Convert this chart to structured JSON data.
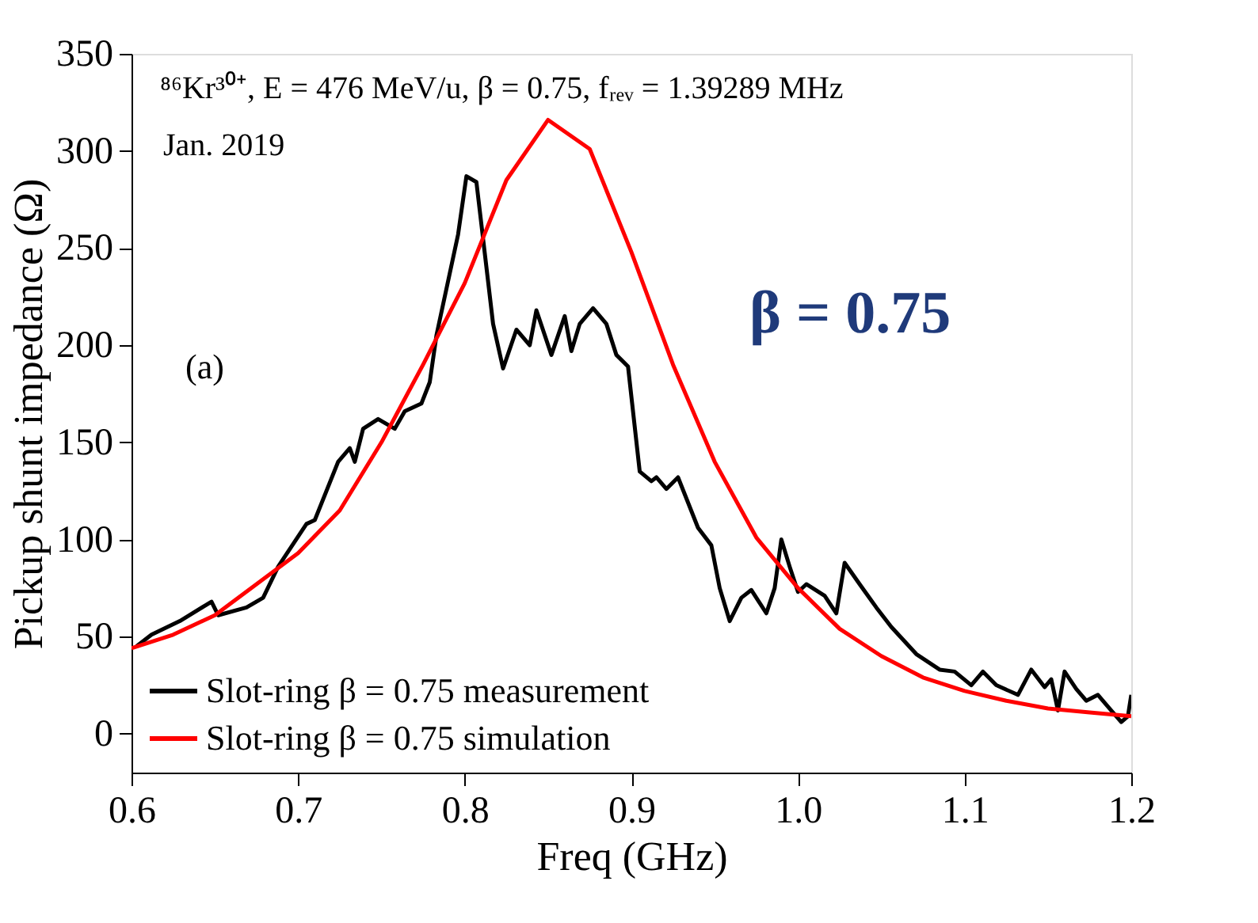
{
  "chart_data": {
    "type": "line",
    "xlabel": "Freq (GHz)",
    "ylabel": "Pickup shunt impedance (Ω)",
    "xlim": [
      0.6,
      1.2
    ],
    "ylim": [
      -20,
      350
    ],
    "xticks": [
      0.6,
      0.7,
      0.8,
      0.9,
      {
        "value": 1,
        "label": "1.0"
      },
      1.1,
      1.2
    ],
    "yticks": [
      0,
      50,
      100,
      150,
      200,
      250,
      300,
      350
    ],
    "grid": false,
    "legend": "bottom left",
    "line_style": "solid",
    "marker": "none",
    "annotations": [
      "⁸⁶Kr³⁰⁺, E = 476 MeV/u, β = 0.75, fᵣₑᵥ = 1.39289 MHz",
      "Jan. 2019",
      "(a)",
      "β = 0.75"
    ],
    "series": [
      {
        "name": "Slot-ring β = 0.75 measurement",
        "color": "#000000",
        "x": [
          0.603,
          0.612,
          0.629,
          0.648,
          0.652,
          0.669,
          0.679,
          0.688,
          0.705,
          0.71,
          0.724,
          0.731,
          0.734,
          0.739,
          0.748,
          0.758,
          0.764,
          0.774,
          0.779,
          0.783,
          0.796,
          0.801,
          0.807,
          0.817,
          0.823,
          0.831,
          0.839,
          0.843,
          0.852,
          0.86,
          0.864,
          0.869,
          0.877,
          0.885,
          0.891,
          0.898,
          0.905,
          0.912,
          0.915,
          0.921,
          0.928,
          0.94,
          0.948,
          0.953,
          0.959,
          0.966,
          0.972,
          0.981,
          0.986,
          0.99,
          0.995,
          1.0,
          1.005,
          1.016,
          1.023,
          1.028,
          1.037,
          1.047,
          1.056,
          1.071,
          1.085,
          1.094,
          1.104,
          1.111,
          1.119,
          1.132,
          1.14,
          1.148,
          1.152,
          1.156,
          1.16,
          1.167,
          1.173,
          1.18,
          1.187,
          1.194,
          1.198,
          1.2
        ],
        "values": [
          45,
          51,
          58,
          68,
          61,
          65,
          70,
          86,
          108,
          110,
          140,
          147,
          140,
          157,
          162,
          157,
          166,
          170,
          181,
          205,
          257,
          287,
          284,
          211,
          188,
          208,
          200,
          218,
          195,
          215,
          197,
          211,
          219,
          211,
          195,
          189,
          135,
          130,
          132,
          126,
          132,
          106,
          97,
          75,
          58,
          70,
          74,
          62,
          75,
          100,
          86,
          73,
          77,
          71,
          62,
          88,
          77,
          65,
          55,
          41,
          33,
          32,
          25,
          32,
          25,
          20,
          33,
          24,
          28,
          12,
          32,
          23,
          17,
          20,
          13,
          6,
          9,
          20
        ]
      },
      {
        "name": "Slot-ring β = 0.75 simulation",
        "color": "#ff0000",
        "x": [
          0.6,
          0.625,
          0.65,
          0.675,
          0.7,
          0.725,
          0.75,
          0.775,
          0.8,
          0.825,
          0.85,
          0.875,
          0.9,
          0.925,
          0.95,
          0.975,
          1.0,
          1.025,
          1.05,
          1.075,
          1.1,
          1.125,
          1.15,
          1.175,
          1.2
        ],
        "values": [
          44,
          51,
          61,
          77,
          93,
          115,
          150,
          190,
          232,
          285,
          316,
          301,
          248,
          190,
          140,
          101,
          75,
          54,
          40,
          29,
          22,
          17,
          13,
          11,
          9
        ]
      }
    ]
  }
}
